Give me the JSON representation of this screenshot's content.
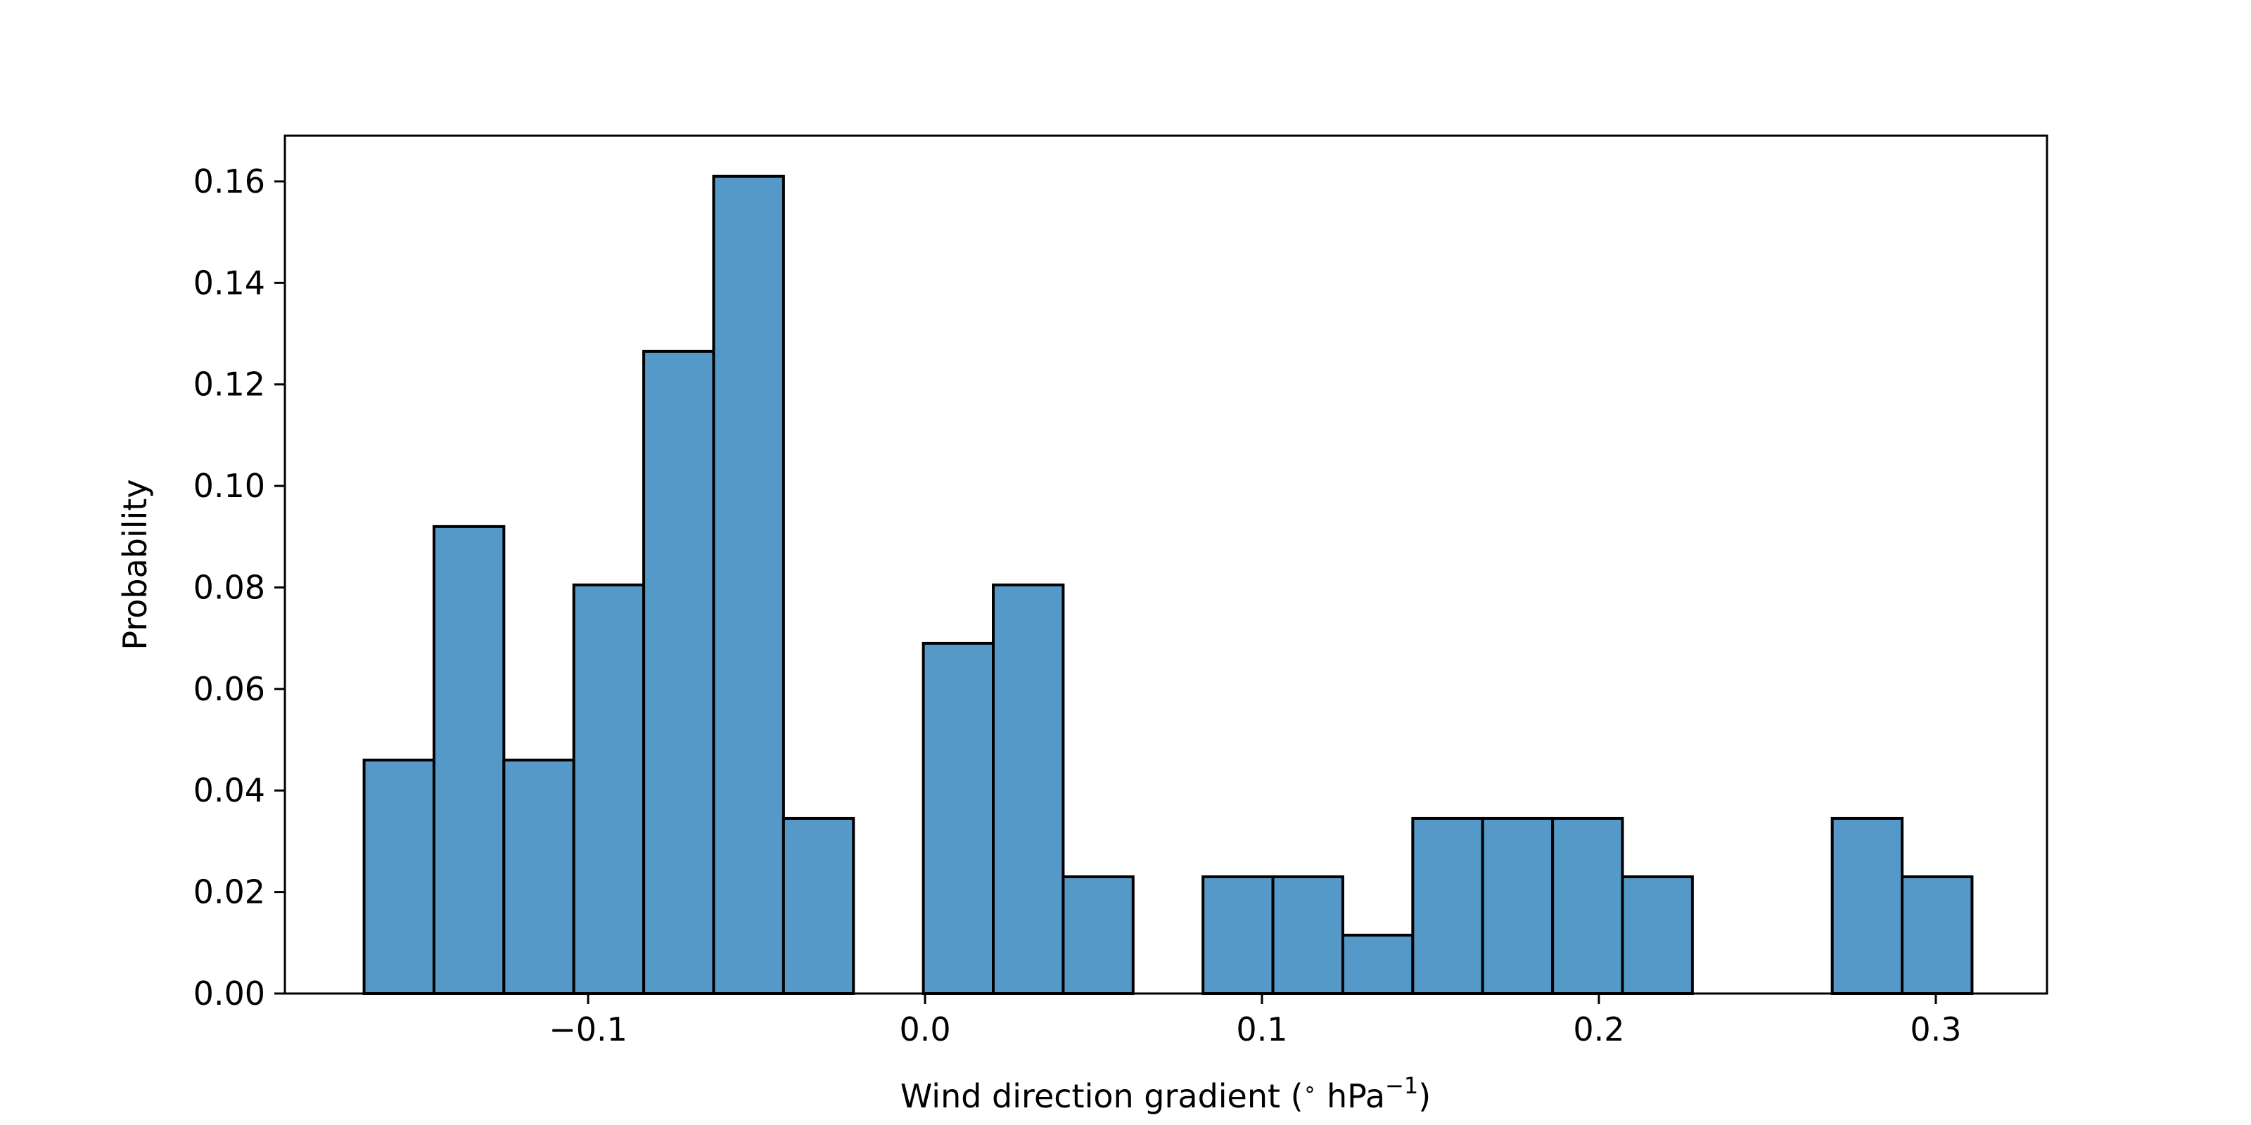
{
  "chart_data": {
    "type": "bar",
    "title": "",
    "xlabel": "Wind direction gradient (",
    "xlabel_degree": "∘",
    "xlabel_unit": " hPa",
    "xlabel_exponent": "−1",
    "xlabel_close": ")",
    "ylabel": "Probability",
    "xlim": [
      -0.19,
      0.333
    ],
    "ylim": [
      0,
      0.169
    ],
    "grid": false,
    "legend": "none",
    "bar_color": "#5499c7",
    "edge_color": "#000000",
    "bin_width": 0.02075,
    "bins": [
      {
        "x0": -0.1665,
        "value": 0.046
      },
      {
        "x0": -0.14575,
        "value": 0.092
      },
      {
        "x0": -0.125,
        "value": 0.046
      },
      {
        "x0": -0.10425,
        "value": 0.0805
      },
      {
        "x0": -0.0835,
        "value": 0.1265
      },
      {
        "x0": -0.06275,
        "value": 0.161
      },
      {
        "x0": -0.042,
        "value": 0.0345
      },
      {
        "x0": -0.02125,
        "value": 0.0
      },
      {
        "x0": -0.0005,
        "value": 0.069
      },
      {
        "x0": 0.02025,
        "value": 0.0805
      },
      {
        "x0": 0.041,
        "value": 0.023
      },
      {
        "x0": 0.06175,
        "value": 0.0
      },
      {
        "x0": 0.0825,
        "value": 0.023
      },
      {
        "x0": 0.10325,
        "value": 0.023
      },
      {
        "x0": 0.124,
        "value": 0.0115
      },
      {
        "x0": 0.14475,
        "value": 0.0345
      },
      {
        "x0": 0.1655,
        "value": 0.0345
      },
      {
        "x0": 0.18625,
        "value": 0.0345
      },
      {
        "x0": 0.207,
        "value": 0.023
      },
      {
        "x0": 0.22775,
        "value": 0.0
      },
      {
        "x0": 0.2485,
        "value": 0.0
      },
      {
        "x0": 0.26925,
        "value": 0.0345
      },
      {
        "x0": 0.29,
        "value": 0.023
      }
    ],
    "x_ticks": [
      {
        "value": -0.1,
        "label": "−0.1"
      },
      {
        "value": 0.0,
        "label": "0.0"
      },
      {
        "value": 0.1,
        "label": "0.1"
      },
      {
        "value": 0.2,
        "label": "0.2"
      },
      {
        "value": 0.3,
        "label": "0.3"
      }
    ],
    "y_ticks": [
      {
        "value": 0.0,
        "label": "0.00"
      },
      {
        "value": 0.02,
        "label": "0.02"
      },
      {
        "value": 0.04,
        "label": "0.04"
      },
      {
        "value": 0.06,
        "label": "0.06"
      },
      {
        "value": 0.08,
        "label": "0.08"
      },
      {
        "value": 0.1,
        "label": "0.10"
      },
      {
        "value": 0.12,
        "label": "0.12"
      },
      {
        "value": 0.14,
        "label": "0.14"
      },
      {
        "value": 0.16,
        "label": "0.16"
      }
    ]
  }
}
